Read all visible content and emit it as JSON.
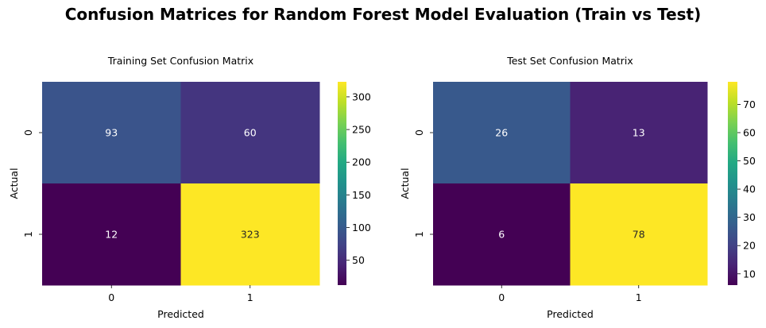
{
  "figure": {
    "title": "Confusion Matrices for Random Forest Model Evaluation (Train vs Test)"
  },
  "chart_data": [
    {
      "type": "heatmap",
      "title": "Training Set Confusion Matrix",
      "xlabel": "Predicted",
      "ylabel": "Actual",
      "x_categories": [
        "0",
        "1"
      ],
      "y_categories": [
        "0",
        "1"
      ],
      "values": [
        [
          93,
          60
        ],
        [
          12,
          323
        ]
      ],
      "colormap": "viridis",
      "colorbar": {
        "min": 12,
        "max": 323,
        "ticks": [
          50,
          100,
          150,
          200,
          250,
          300
        ]
      },
      "annotation_colors": {
        "dark_cell": "#ffffff",
        "light_cell": "#262626"
      }
    },
    {
      "type": "heatmap",
      "title": "Test Set Confusion Matrix",
      "xlabel": "Predicted",
      "ylabel": "Actual",
      "x_categories": [
        "0",
        "1"
      ],
      "y_categories": [
        "0",
        "1"
      ],
      "values": [
        [
          26,
          13
        ],
        [
          6,
          78
        ]
      ],
      "colormap": "viridis",
      "colorbar": {
        "min": 6,
        "max": 78,
        "ticks": [
          10,
          20,
          30,
          40,
          50,
          60,
          70
        ]
      },
      "annotation_colors": {
        "dark_cell": "#ffffff",
        "light_cell": "#262626"
      }
    }
  ]
}
